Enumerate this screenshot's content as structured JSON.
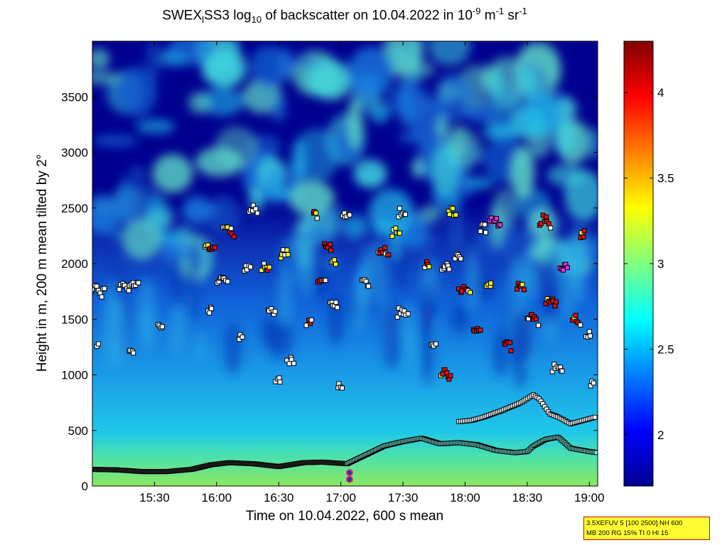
{
  "chart_data": {
    "type": "heatmap",
    "title": {
      "prefix": "SWEX",
      "sub_l": "l",
      "middle": "SS3 log",
      "sub_10": "10",
      "text1": " of backscatter on 10.04.2022 in 10",
      "sup_m9": "-9",
      "text2": " m",
      "sup_m1a": "-1",
      "text3": " sr",
      "sup_m1b": "-1"
    },
    "xlabel": "Time on 10.04.2022, 600 s mean",
    "ylabel": "Height in m, 200 m mean tilted by 2°",
    "x_range_hours": [
      15.0,
      19.067
    ],
    "y_range_m": [
      0,
      4000
    ],
    "x_ticks": [
      {
        "value": 15.5,
        "label": "15:30"
      },
      {
        "value": 16.0,
        "label": "16:00"
      },
      {
        "value": 16.5,
        "label": "16:30"
      },
      {
        "value": 17.0,
        "label": "17:00"
      },
      {
        "value": 17.5,
        "label": "17:30"
      },
      {
        "value": 18.0,
        "label": "18:00"
      },
      {
        "value": 18.5,
        "label": "18:30"
      },
      {
        "value": 19.0,
        "label": "19:00"
      }
    ],
    "y_ticks": [
      {
        "value": 0,
        "label": "0"
      },
      {
        "value": 500,
        "label": "500"
      },
      {
        "value": 1000,
        "label": "1000"
      },
      {
        "value": 1500,
        "label": "1500"
      },
      {
        "value": 2000,
        "label": "2000"
      },
      {
        "value": 2500,
        "label": "2500"
      },
      {
        "value": 3000,
        "label": "3000"
      },
      {
        "value": 3500,
        "label": "3500"
      }
    ],
    "colorbar": {
      "range": [
        1.7,
        4.3
      ],
      "ticks": [
        {
          "value": 2.0,
          "label": "2"
        },
        {
          "value": 2.5,
          "label": "2.5"
        },
        {
          "value": 3.0,
          "label": "3"
        },
        {
          "value": 3.5,
          "label": "3.5"
        },
        {
          "value": 4.0,
          "label": "4"
        }
      ],
      "colormap": "jet"
    },
    "surface_layer": [
      [
        15.0,
        150
      ],
      [
        15.2,
        145
      ],
      [
        15.4,
        130
      ],
      [
        15.6,
        130
      ],
      [
        15.8,
        150
      ],
      [
        15.95,
        190
      ],
      [
        16.1,
        210
      ],
      [
        16.3,
        200
      ],
      [
        16.5,
        175
      ],
      [
        16.7,
        210
      ],
      [
        16.85,
        215
      ],
      [
        17.05,
        200
      ],
      [
        17.2,
        280
      ],
      [
        17.35,
        360
      ],
      [
        17.5,
        400
      ],
      [
        17.65,
        430
      ],
      [
        17.8,
        380
      ],
      [
        17.95,
        390
      ],
      [
        18.1,
        370
      ],
      [
        18.25,
        320
      ],
      [
        18.4,
        300
      ],
      [
        18.5,
        310
      ],
      [
        18.55,
        360
      ],
      [
        18.65,
        420
      ],
      [
        18.75,
        440
      ],
      [
        18.85,
        340
      ],
      [
        19.0,
        310
      ],
      [
        19.067,
        300
      ]
    ],
    "upper_layer": [
      [
        17.95,
        580
      ],
      [
        18.05,
        590
      ],
      [
        18.15,
        620
      ],
      [
        18.3,
        680
      ],
      [
        18.45,
        750
      ],
      [
        18.55,
        820
      ],
      [
        18.6,
        780
      ],
      [
        18.68,
        650
      ],
      [
        18.75,
        620
      ],
      [
        18.85,
        560
      ],
      [
        18.95,
        590
      ],
      [
        19.05,
        620
      ]
    ],
    "marker_pairs": [
      {
        "x": 17.07,
        "y": 120
      },
      {
        "x": 17.07,
        "y": 60
      }
    ],
    "point_categories": [
      "white",
      "red",
      "yellow",
      "magenta"
    ],
    "colors": {
      "background_dark": "#00008f",
      "white_point": "#ffffff",
      "red_point": "#e01010",
      "yellow_point": "#ffff20",
      "magenta_point": "#e030e0"
    }
  },
  "info_box": {
    "line1": "3.5XEFUV 5 [100 2500] NH 600",
    "line2": "MB 200 RG 15% TI 0 HI 15"
  }
}
